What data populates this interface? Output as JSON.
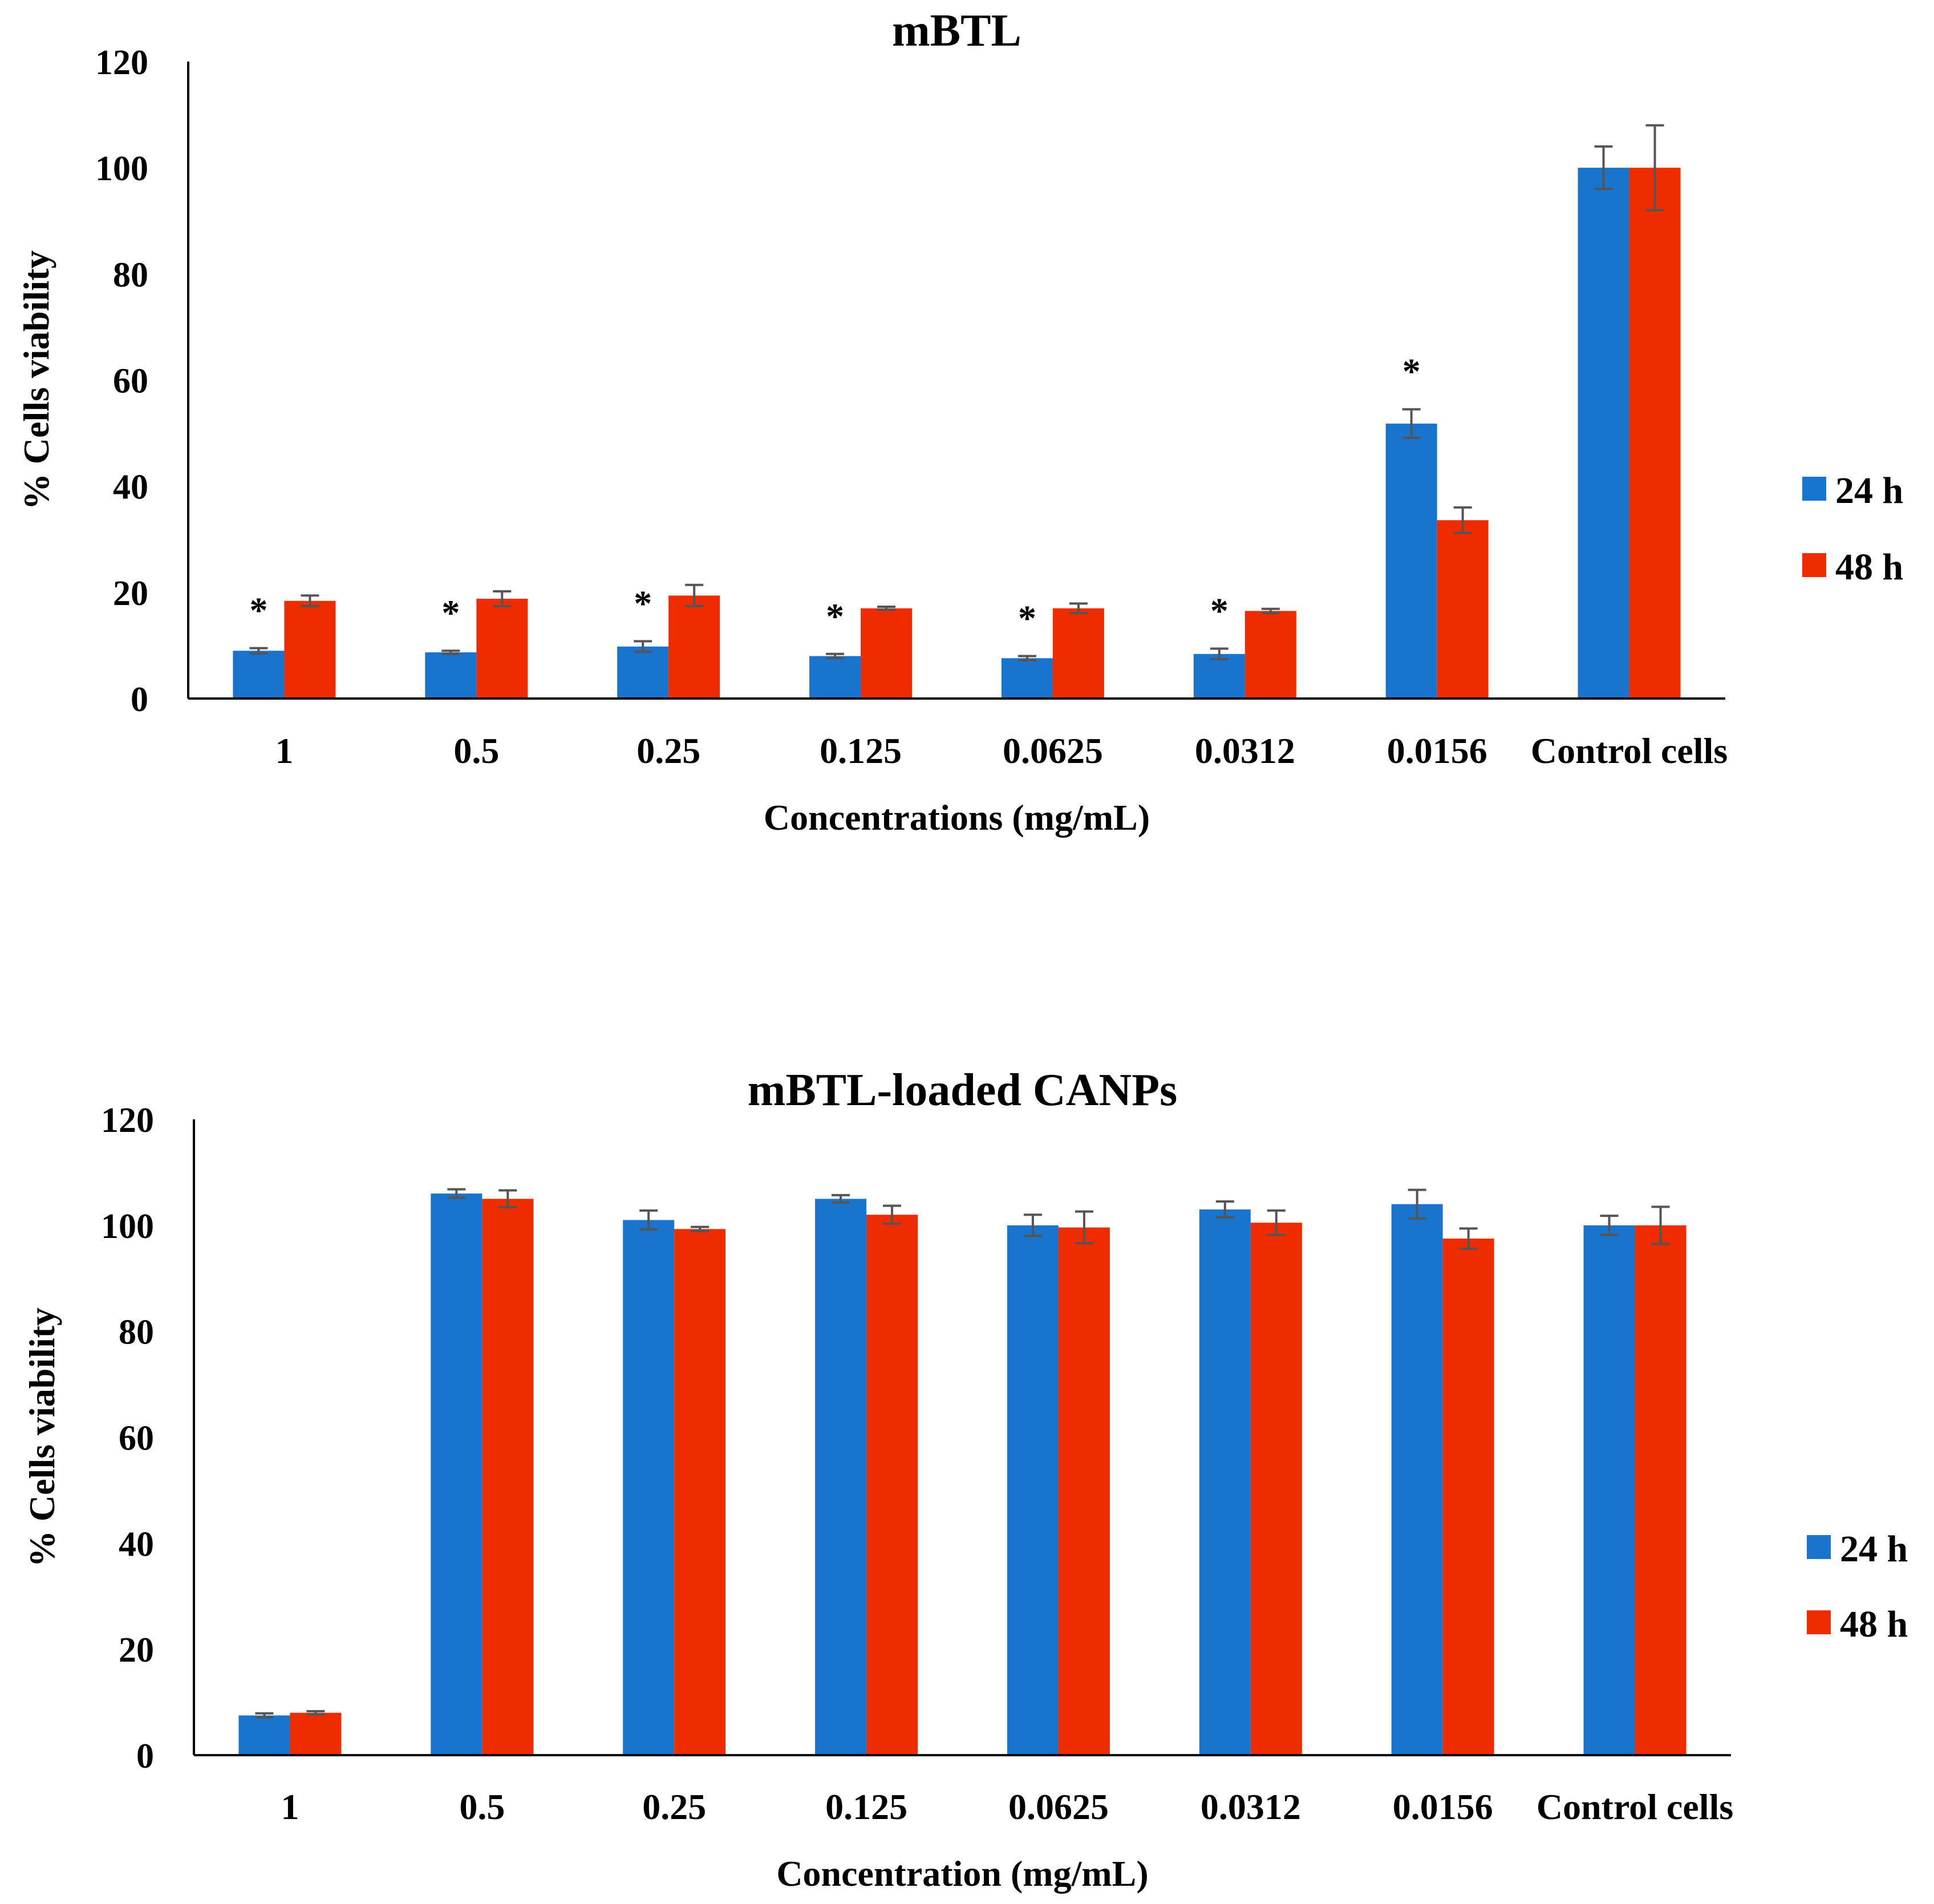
{
  "colors": {
    "series_24h": "#1874CD",
    "series_48h": "#EE2C00",
    "axis": "#000000",
    "error_bar": "#555555"
  },
  "chart_data": [
    {
      "type": "bar",
      "title": "mBTL",
      "xlabel": "Concentrations  (mg/mL)",
      "ylabel": "% Cells viability",
      "ylim": [
        0,
        120
      ],
      "yticks": [
        0,
        20,
        40,
        60,
        80,
        100,
        120
      ],
      "grid": false,
      "legend_position": "right",
      "categories": [
        "1",
        "0.5",
        "0.25",
        "0.125",
        "0.0625",
        "0.0312",
        "0.0156",
        "Control cells"
      ],
      "series": [
        {
          "name": "24 h",
          "values": [
            9,
            8.7,
            9.8,
            8,
            7.6,
            8.4,
            51.8,
            100
          ],
          "errors": [
            0.5,
            0.3,
            1.0,
            0.4,
            0.4,
            1.0,
            2.7,
            4
          ]
        },
        {
          "name": "48 h",
          "values": [
            18.4,
            18.8,
            19.4,
            17,
            17,
            16.5,
            33.6,
            100
          ],
          "errors": [
            1.0,
            1.4,
            2.0,
            0.3,
            0.9,
            0.4,
            2.4,
            8
          ]
        }
      ],
      "annotations": [
        {
          "category": "1",
          "text": "*"
        },
        {
          "category": "0.5",
          "text": "*"
        },
        {
          "category": "0.25",
          "text": "*"
        },
        {
          "category": "0.125",
          "text": "*"
        },
        {
          "category": "0.0625",
          "text": "*"
        },
        {
          "category": "0.0312",
          "text": "*"
        },
        {
          "category": "0.0156",
          "text": "*"
        }
      ]
    },
    {
      "type": "bar",
      "title": "mBTL-loaded CANPs",
      "xlabel": "Concentration   (mg/mL)",
      "ylabel": "% Cells viability",
      "ylim": [
        0,
        120
      ],
      "yticks": [
        0,
        20,
        40,
        60,
        80,
        100,
        120
      ],
      "grid": false,
      "legend_position": "right",
      "categories": [
        "1",
        "0.5",
        "0.25",
        "0.125",
        "0.0625",
        "0.0312",
        "0.0156",
        "Control cells"
      ],
      "series": [
        {
          "name": "24 h",
          "values": [
            7.5,
            106,
            101,
            105,
            100,
            103,
            104,
            100
          ],
          "errors": [
            0.4,
            0.8,
            1.8,
            0.7,
            2.0,
            1.5,
            2.7,
            1.8
          ]
        },
        {
          "name": "48 h",
          "values": [
            8,
            105,
            99.3,
            102,
            99.6,
            100.5,
            97.5,
            100
          ],
          "errors": [
            0.3,
            1.6,
            0.4,
            1.7,
            3.0,
            2.3,
            1.9,
            3.5
          ]
        }
      ],
      "annotations": []
    }
  ]
}
